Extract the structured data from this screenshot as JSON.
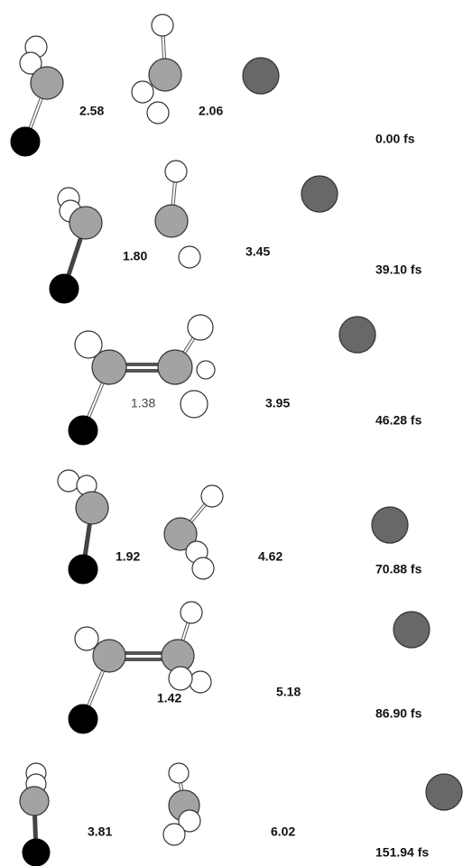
{
  "frames": [
    {
      "distances": [
        "2.58",
        "2.06"
      ],
      "time": "0.00 fs"
    },
    {
      "distances": [
        "1.80",
        "3.45"
      ],
      "time": "39.10 fs"
    },
    {
      "distances": [
        "1.38",
        "3.95"
      ],
      "time": "46.28 fs"
    },
    {
      "distances": [
        "1.92",
        "4.62"
      ],
      "time": "70.88 fs"
    },
    {
      "distances": [
        "1.42",
        "5.18"
      ],
      "time": "86.90 fs"
    },
    {
      "distances": [
        "3.81",
        "6.02"
      ],
      "time": "151.94 fs"
    }
  ]
}
